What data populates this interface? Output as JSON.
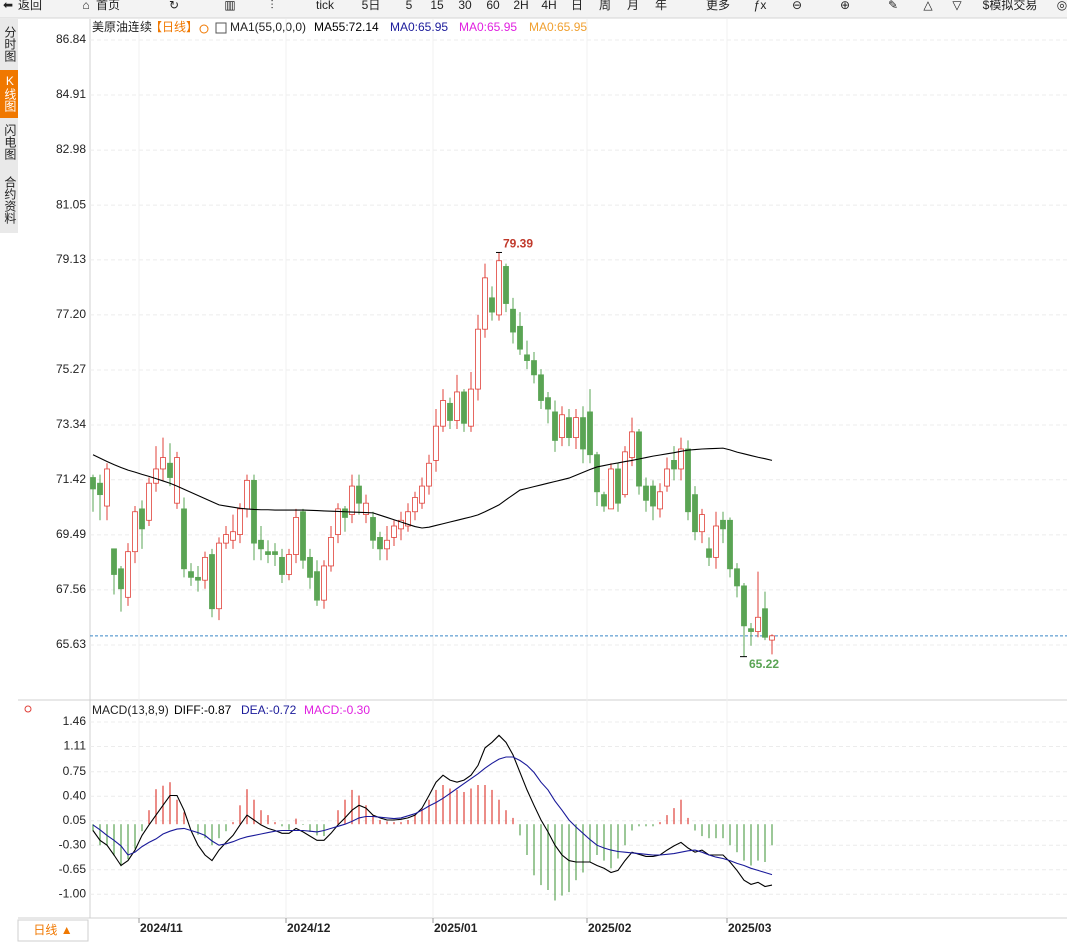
{
  "toolbar": [
    "返回",
    "首页",
    "tick",
    "5日",
    "5",
    "15",
    "30",
    "60",
    "2H",
    "4H",
    "日",
    "周",
    "月",
    "年",
    "更多",
    "$模拟交易"
  ],
  "sidebar": [
    "分时图",
    "K线图",
    "闪电图",
    "合约资料"
  ],
  "period_button": "日线 ▲",
  "chart_data": [
    {
      "type": "candlestick",
      "title": "美原油连续",
      "period": "【日线】",
      "indicator": "MA1(55,0,0,0)",
      "up_color": "#e0413a",
      "down_color": "#5aa454",
      "grid": true,
      "last_price": 65.95,
      "last_price_color": "#3a86c8",
      "ylim": [
        63.7,
        87.54
      ],
      "yticks": [
        86.84,
        84.91,
        82.98,
        81.05,
        79.13,
        {
          "value": 77.2,
          "label": "77.20"
        },
        75.27,
        73.34,
        71.42,
        69.49,
        67.56,
        65.63
      ],
      "categories": [
        null,
        null,
        null,
        null,
        null,
        null,
        null,
        "2024/11",
        null,
        null,
        null,
        null,
        null,
        null,
        null,
        null,
        null,
        null,
        null,
        null,
        null,
        null,
        null,
        null,
        null,
        null,
        null,
        null,
        "2024/12",
        null,
        null,
        null,
        null,
        null,
        null,
        null,
        null,
        null,
        null,
        null,
        null,
        null,
        null,
        null,
        null,
        null,
        null,
        null,
        null,
        "2025/01",
        null,
        null,
        null,
        null,
        null,
        null,
        null,
        null,
        null,
        null,
        null,
        null,
        null,
        null,
        null,
        null,
        null,
        null,
        null,
        null,
        null,
        "2025/02",
        null,
        null,
        null,
        null,
        null,
        null,
        null,
        null,
        null,
        null,
        null,
        null,
        null,
        null,
        null,
        null,
        null,
        null,
        null,
        "2025/03",
        null,
        null,
        null,
        null,
        null,
        null
      ],
      "open": [
        71.5,
        71.3,
        70.5,
        69.0,
        68.3,
        67.3,
        68.9,
        70.4,
        70.0,
        71.3,
        71.8,
        72.0,
        70.6,
        70.4,
        68.2,
        68.0,
        67.9,
        68.8,
        66.9,
        69.2,
        69.3,
        69.5,
        70.4,
        71.4,
        69.3,
        68.9,
        68.9,
        68.7,
        68.1,
        68.8,
        70.3,
        68.7,
        68.2,
        67.2,
        68.4,
        69.5,
        70.4,
        70.2,
        71.2,
        70.2,
        70.1,
        69.4,
        69.0,
        69.4,
        69.7,
        69.8,
        70.3,
        70.6,
        71.2,
        72.1,
        73.3,
        74.1,
        73.5,
        74.5,
        73.3,
        74.6,
        76.7,
        77.8,
        77.2,
        78.9,
        77.4,
        76.8,
        75.8,
        75.6,
        75.1,
        74.3,
        73.8,
        72.9,
        73.6,
        72.9,
        73.6,
        73.8,
        72.3,
        70.9,
        70.4,
        71.8,
        70.9,
        72.2,
        73.1,
        71.2,
        71.2,
        70.4,
        71.2,
        72.1,
        71.8,
        72.5,
        70.9,
        69.6,
        69.0,
        68.7,
        70.0,
        70.0,
        68.3,
        67.7,
        66.2,
        66.1,
        66.9,
        65.8
      ],
      "high": [
        71.6,
        71.6,
        72.0,
        69.0,
        68.4,
        69.2,
        70.5,
        70.7,
        71.5,
        72.6,
        72.9,
        72.7,
        72.4,
        70.8,
        68.5,
        68.4,
        68.9,
        69.0,
        69.4,
        69.8,
        70.2,
        70.6,
        71.6,
        71.6,
        69.8,
        69.3,
        69.2,
        69.0,
        69.0,
        70.4,
        70.4,
        69.0,
        68.6,
        68.6,
        69.8,
        70.6,
        70.5,
        71.6,
        71.6,
        70.9,
        70.3,
        69.6,
        69.8,
        70.0,
        70.3,
        70.6,
        71.0,
        71.5,
        72.3,
        73.9,
        74.6,
        74.3,
        75.1,
        74.6,
        75.2,
        77.2,
        79.0,
        78.2,
        79.39,
        79.0,
        77.8,
        77.3,
        76.3,
        75.9,
        75.3,
        74.5,
        74.2,
        74.0,
        73.9,
        73.9,
        74.0,
        74.6,
        72.4,
        71.0,
        72.0,
        72.0,
        72.6,
        73.6,
        73.2,
        71.5,
        71.4,
        71.3,
        72.2,
        72.6,
        72.9,
        72.8,
        71.2,
        70.4,
        69.4,
        70.3,
        70.3,
        70.1,
        68.5,
        67.8,
        66.4,
        68.2,
        67.5,
        66.0
      ],
      "low": [
        70.3,
        70.0,
        70.0,
        67.4,
        66.8,
        67.0,
        68.5,
        69.0,
        69.8,
        71.0,
        71.4,
        71.2,
        70.4,
        68.0,
        67.7,
        67.5,
        67.6,
        66.6,
        66.5,
        69.0,
        69.0,
        69.2,
        70.1,
        68.6,
        68.6,
        68.5,
        68.4,
        67.8,
        67.9,
        68.5,
        68.3,
        67.6,
        67.0,
        66.9,
        68.2,
        69.2,
        69.6,
        69.9,
        70.2,
        69.9,
        69.0,
        68.6,
        68.6,
        69.1,
        69.3,
        69.6,
        70.0,
        70.4,
        70.9,
        71.7,
        73.1,
        73.2,
        73.2,
        73.1,
        73.1,
        74.2,
        76.4,
        77.0,
        77.0,
        77.3,
        76.2,
        75.8,
        75.3,
        74.8,
        73.9,
        73.4,
        72.4,
        72.6,
        72.6,
        72.5,
        72.0,
        72.0,
        70.5,
        70.3,
        70.4,
        70.3,
        70.8,
        71.9,
        70.9,
        70.3,
        70.0,
        70.1,
        71.0,
        71.4,
        71.4,
        70.0,
        69.3,
        69.2,
        68.4,
        68.3,
        69.2,
        68.0,
        67.3,
        65.22,
        65.6,
        65.9,
        65.8,
        65.3
      ],
      "close": [
        71.1,
        70.9,
        71.8,
        68.1,
        67.6,
        68.9,
        70.3,
        69.7,
        71.3,
        71.8,
        72.2,
        71.5,
        72.2,
        68.3,
        68.0,
        67.9,
        68.7,
        66.9,
        69.2,
        69.5,
        69.6,
        70.4,
        71.4,
        69.2,
        69.0,
        68.8,
        68.8,
        68.1,
        68.8,
        70.1,
        68.6,
        68.0,
        67.2,
        68.4,
        69.4,
        70.4,
        70.1,
        71.2,
        70.6,
        70.6,
        69.3,
        69.0,
        69.3,
        69.8,
        70.0,
        70.3,
        70.8,
        71.2,
        72.0,
        73.3,
        74.2,
        73.5,
        74.5,
        73.4,
        74.6,
        76.7,
        78.5,
        77.3,
        79.1,
        77.6,
        76.6,
        76.0,
        75.6,
        75.1,
        74.2,
        73.9,
        72.8,
        73.7,
        72.9,
        73.6,
        72.5,
        72.3,
        71.0,
        70.5,
        71.8,
        70.6,
        72.4,
        73.1,
        71.2,
        70.7,
        70.5,
        71.0,
        71.8,
        71.8,
        72.5,
        70.3,
        69.6,
        70.2,
        68.7,
        69.8,
        69.7,
        68.3,
        67.7,
        66.3,
        66.1,
        66.6,
        65.9,
        65.95
      ],
      "series": [
        {
          "name": "MA55:72.14",
          "color": "#000000",
          "values": [
            72.3,
            72.18,
            72.06,
            71.95,
            71.85,
            71.76,
            71.69,
            71.61,
            71.54,
            71.46,
            71.38,
            71.3,
            71.2,
            71.09,
            70.98,
            70.87,
            70.76,
            70.65,
            70.54,
            70.5,
            70.46,
            70.42,
            70.4,
            70.38,
            70.37,
            70.37,
            70.36,
            70.36,
            70.36,
            70.36,
            70.36,
            70.35,
            70.34,
            70.33,
            70.32,
            70.31,
            70.3,
            70.29,
            70.28,
            70.27,
            70.26,
            70.18,
            70.1,
            70.02,
            69.94,
            69.86,
            69.78,
            69.73,
            69.76,
            69.82,
            69.88,
            69.94,
            70.0,
            70.06,
            70.12,
            70.19,
            70.3,
            70.42,
            70.54,
            70.72,
            70.89,
            71.06,
            71.12,
            71.18,
            71.24,
            71.3,
            71.36,
            71.42,
            71.48,
            71.58,
            71.68,
            71.78,
            71.87,
            71.92,
            71.97,
            72.01,
            72.06,
            72.1,
            72.15,
            72.2,
            72.25,
            72.29,
            72.33,
            72.37,
            72.42,
            72.46,
            72.48,
            72.5,
            72.51,
            72.52,
            72.53,
            72.47,
            72.39,
            72.33,
            72.27,
            72.21,
            72.16,
            72.1
          ]
        }
      ],
      "legend": [
        {
          "name": "MA0:65.95",
          "color": "#1a1a9a"
        },
        {
          "name": "MA0:65.95",
          "color": "#e020e0"
        },
        {
          "name": "MA0:65.95",
          "color": "#f0a030"
        }
      ]
    },
    {
      "type": "macd",
      "title": "MACD(13,8,9)",
      "ylim": [
        -1.34,
        1.56
      ],
      "yticks": [
        1.46,
        1.11,
        0.75,
        {
          "value": 0.4,
          "label": "0.40"
        },
        0.05,
        {
          "value": -0.3,
          "label": "-0.30"
        },
        -0.65,
        {
          "value": -1,
          "label": "-1.00"
        }
      ],
      "histogram": {
        "name": "MACD:-0.30",
        "color": "#e020e0",
        "up_color": "#e0413a",
        "down_color": "#5aa454",
        "values": [
          -0.1,
          -0.3,
          -0.3,
          -0.45,
          -0.6,
          -0.5,
          -0.35,
          -0.1,
          0.2,
          0.5,
          0.55,
          0.6,
          0.35,
          0.17,
          0.0,
          -0.15,
          -0.2,
          -0.3,
          -0.2,
          -0.1,
          0.03,
          0.27,
          0.5,
          0.35,
          0.2,
          0.13,
          0.03,
          -0.03,
          -0.08,
          0.08,
          -0.01,
          -0.11,
          -0.16,
          -0.17,
          0.0,
          0.2,
          0.35,
          0.49,
          0.41,
          0.27,
          0.13,
          0.06,
          0.04,
          0.03,
          0.03,
          0.06,
          0.13,
          0.23,
          0.35,
          0.49,
          0.56,
          0.51,
          0.49,
          0.46,
          0.51,
          0.56,
          0.56,
          0.49,
          0.35,
          0.2,
          0.09,
          -0.16,
          -0.44,
          -0.73,
          -0.87,
          -0.94,
          -1.09,
          -1.02,
          -0.97,
          -0.8,
          -0.69,
          -0.54,
          -0.44,
          -0.52,
          -0.63,
          -0.49,
          -0.3,
          -0.09,
          -0.03,
          -0.03,
          -0.03,
          0.03,
          0.13,
          0.23,
          0.35,
          0.09,
          -0.09,
          -0.17,
          -0.2,
          -0.2,
          -0.2,
          -0.3,
          -0.4,
          -0.52,
          -0.59,
          -0.52,
          -0.54,
          -0.3
        ]
      },
      "series": [
        {
          "name": "DIFF:-0.87",
          "color": "#000000",
          "values": [
            -0.09,
            -0.23,
            -0.3,
            -0.44,
            -0.59,
            -0.52,
            -0.37,
            -0.16,
            -0.01,
            0.13,
            0.27,
            0.41,
            0.41,
            0.2,
            -0.09,
            -0.3,
            -0.44,
            -0.52,
            -0.37,
            -0.26,
            -0.16,
            -0.01,
            0.13,
            0.06,
            -0.01,
            -0.06,
            -0.09,
            -0.13,
            -0.13,
            -0.06,
            -0.11,
            -0.17,
            -0.23,
            -0.23,
            -0.13,
            -0.01,
            0.09,
            0.2,
            0.27,
            0.23,
            0.13,
            0.09,
            0.06,
            0.06,
            0.07,
            0.09,
            0.13,
            0.23,
            0.41,
            0.6,
            0.7,
            0.63,
            0.6,
            0.63,
            0.7,
            0.84,
            1.09,
            1.17,
            1.27,
            1.17,
            0.99,
            0.74,
            0.49,
            0.27,
            0.06,
            -0.11,
            -0.3,
            -0.44,
            -0.52,
            -0.54,
            -0.54,
            -0.54,
            -0.59,
            -0.63,
            -0.69,
            -0.66,
            -0.52,
            -0.4,
            -0.43,
            -0.46,
            -0.46,
            -0.44,
            -0.37,
            -0.31,
            -0.26,
            -0.34,
            -0.4,
            -0.37,
            -0.44,
            -0.44,
            -0.44,
            -0.54,
            -0.66,
            -0.8,
            -0.86,
            -0.83,
            -0.89,
            -0.87
          ]
        },
        {
          "name": "DEA:-0.72",
          "color": "#1a1a9a",
          "values": [
            -0.01,
            -0.08,
            -0.16,
            -0.23,
            -0.31,
            -0.44,
            -0.4,
            -0.32,
            -0.26,
            -0.21,
            -0.14,
            -0.1,
            -0.07,
            -0.06,
            -0.09,
            -0.12,
            -0.16,
            -0.24,
            -0.3,
            -0.28,
            -0.25,
            -0.21,
            -0.18,
            -0.16,
            -0.14,
            -0.12,
            -0.1,
            -0.09,
            -0.09,
            -0.09,
            -0.09,
            -0.1,
            -0.11,
            -0.09,
            -0.06,
            -0.03,
            0.0,
            0.04,
            0.09,
            0.11,
            0.11,
            0.1,
            0.09,
            0.08,
            0.09,
            0.12,
            0.15,
            0.2,
            0.26,
            0.31,
            0.37,
            0.44,
            0.51,
            0.58,
            0.65,
            0.72,
            0.8,
            0.87,
            0.93,
            0.96,
            0.96,
            0.91,
            0.84,
            0.74,
            0.6,
            0.49,
            0.33,
            0.2,
            0.06,
            -0.04,
            -0.13,
            -0.22,
            -0.3,
            -0.34,
            -0.37,
            -0.39,
            -0.4,
            -0.41,
            -0.42,
            -0.43,
            -0.44,
            -0.44,
            -0.43,
            -0.42,
            -0.4,
            -0.38,
            -0.37,
            -0.4,
            -0.44,
            -0.47,
            -0.49,
            -0.52,
            -0.56,
            -0.59,
            -0.63,
            -0.66,
            -0.69,
            -0.72
          ]
        }
      ]
    }
  ]
}
